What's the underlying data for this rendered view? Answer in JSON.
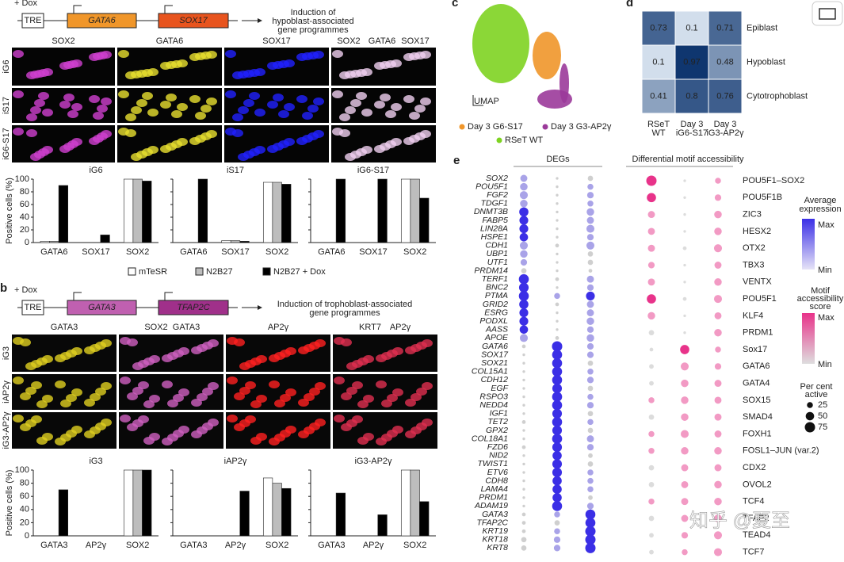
{
  "panel_a": {
    "dox": "+ Dox",
    "construct": [
      "TRE",
      "GATA6",
      "SOX17"
    ],
    "caption": [
      "Induction of",
      "hypoblast-associated",
      "gene programmes"
    ],
    "image_labels": [
      "SOX2",
      "GATA6",
      "SOX17"
    ],
    "merge_label": [
      "SOX2",
      "GATA6",
      "SOX17"
    ],
    "row_labels": [
      "iG6",
      "iS17",
      "iG6-S17"
    ],
    "ylabel": "Positive cells (%)",
    "ylim": [
      0,
      100
    ],
    "yticks": [
      0,
      20,
      40,
      60,
      80,
      100
    ],
    "legend": [
      {
        "name": "mTeSR",
        "color": "#ffffff"
      },
      {
        "name": "N2B27",
        "color": "#bdbdbd"
      },
      {
        "name": "N2B27 + Dox",
        "color": "#000000"
      }
    ],
    "charts": [
      {
        "title": "iG6",
        "categories": [
          "GATA6",
          "SOX17",
          "SOX2"
        ],
        "values": [
          [
            2,
            0,
            100
          ],
          [
            2,
            0,
            100
          ],
          [
            90,
            12,
            97
          ]
        ]
      },
      {
        "title": "iS17",
        "categories": [
          "GATA6",
          "SOX17",
          "SOX2"
        ],
        "values": [
          [
            0,
            3,
            95
          ],
          [
            0,
            3,
            95
          ],
          [
            100,
            2,
            92
          ]
        ]
      },
      {
        "title": "iG6-S17",
        "categories": [
          "GATA6",
          "SOX17",
          "SOX2"
        ],
        "values": [
          [
            0,
            0,
            100
          ],
          [
            0,
            0,
            100
          ],
          [
            100,
            100,
            70
          ]
        ]
      }
    ]
  },
  "panel_b": {
    "letter": "b",
    "dox": "+ Dox",
    "construct": [
      "TRE",
      "GATA3",
      "TFAP2C"
    ],
    "caption": [
      "Induction of trophoblast-associated",
      "gene programmes"
    ],
    "image_labels": [
      [
        "GATA3"
      ],
      [
        "SOX2",
        "GATA3"
      ],
      [
        "AP2γ"
      ],
      [
        "KRT7",
        "AP2γ"
      ]
    ],
    "row_labels": [
      "iG3",
      "iAP2γ",
      "iG3-AP2γ"
    ],
    "ylabel": "Positive cells (%)",
    "ylim": [
      0,
      100
    ],
    "yticks": [
      0,
      20,
      40,
      60,
      80,
      100
    ],
    "charts": [
      {
        "title": "iG3",
        "categories": [
          "GATA3",
          "AP2γ",
          "SOX2"
        ],
        "values": [
          [
            0,
            0,
            100
          ],
          [
            0,
            0,
            100
          ],
          [
            70,
            0,
            100
          ]
        ]
      },
      {
        "title": "iAP2γ",
        "categories": [
          "GATA3",
          "AP2γ",
          "SOX2"
        ],
        "values": [
          [
            0,
            0,
            88
          ],
          [
            0,
            0,
            80
          ],
          [
            0,
            68,
            72
          ]
        ]
      },
      {
        "title": "iG3-AP2γ",
        "categories": [
          "GATA3",
          "AP2γ",
          "SOX2"
        ],
        "values": [
          [
            0,
            0,
            100
          ],
          [
            0,
            0,
            100
          ],
          [
            65,
            32,
            52
          ]
        ]
      }
    ]
  },
  "panel_c": {
    "letter": "c",
    "axis_label": "UMAP",
    "legend": [
      {
        "name": "Day 3 G6-S17",
        "color": "#f0962a"
      },
      {
        "name": "Day 3 G3-AP2γ",
        "color": "#9b3a9a"
      },
      {
        "name": "RSeT WT",
        "color": "#7ed321"
      }
    ]
  },
  "panel_d": {
    "letter": "d",
    "rows": [
      "Epiblast",
      "Hypoblast",
      "Cytotrophoblast"
    ],
    "columns": [
      [
        "RSeT",
        "WT"
      ],
      [
        "Day 3",
        "iG6-S17"
      ],
      [
        "Day 3",
        "iG3-AP2γ"
      ]
    ],
    "values": [
      [
        0.73,
        0.1,
        0.71
      ],
      [
        0.1,
        0.97,
        0.48
      ],
      [
        0.41,
        0.8,
        0.76
      ]
    ]
  },
  "panel_e": {
    "letter": "e",
    "degs_title": "DEGs",
    "motif_title": "Differential motif accessibility",
    "genes": [
      "SOX2",
      "POU5F1",
      "FGF2",
      "TDGF1",
      "DNMT3B",
      "FABP5",
      "LIN28A",
      "HSPE1",
      "CDH1",
      "UBP1",
      "UTF1",
      "PRDM14",
      "TERF1",
      "BNC2",
      "PTMA",
      "GRID2",
      "ESRG",
      "PODXL",
      "AASS",
      "APOE",
      "GATA6",
      "SOX17",
      "SOX21",
      "COL15A1",
      "CDH12",
      "EGF",
      "RSPO3",
      "NEDD4",
      "IGF1",
      "TET2",
      "GPX2",
      "COL18A1",
      "FZD6",
      "NID2",
      "TWIST1",
      "ETV6",
      "CDH8",
      "LAMA4",
      "PRDM1",
      "ADAM19",
      "GATA3",
      "TFAP2C",
      "KRT19",
      "KRT18",
      "KRT8"
    ],
    "gene_values": [
      [
        35,
        5,
        20
      ],
      [
        40,
        5,
        25
      ],
      [
        45,
        5,
        30
      ],
      [
        40,
        5,
        25
      ],
      [
        60,
        5,
        40
      ],
      [
        55,
        5,
        35
      ],
      [
        55,
        5,
        45
      ],
      [
        50,
        5,
        30
      ],
      [
        45,
        10,
        45
      ],
      [
        40,
        5,
        20
      ],
      [
        30,
        5,
        20
      ],
      [
        20,
        5,
        10
      ],
      [
        70,
        10,
        35
      ],
      [
        65,
        5,
        30
      ],
      [
        70,
        25,
        55
      ],
      [
        60,
        10,
        35
      ],
      [
        55,
        5,
        35
      ],
      [
        55,
        5,
        40
      ],
      [
        50,
        5,
        30
      ],
      [
        45,
        10,
        40
      ],
      [
        10,
        75,
        30
      ],
      [
        5,
        70,
        30
      ],
      [
        5,
        70,
        20
      ],
      [
        5,
        70,
        25
      ],
      [
        5,
        70,
        30
      ],
      [
        5,
        65,
        20
      ],
      [
        5,
        70,
        25
      ],
      [
        5,
        70,
        30
      ],
      [
        5,
        65,
        20
      ],
      [
        10,
        70,
        25
      ],
      [
        5,
        65,
        20
      ],
      [
        5,
        70,
        35
      ],
      [
        10,
        65,
        30
      ],
      [
        5,
        60,
        15
      ],
      [
        5,
        65,
        20
      ],
      [
        5,
        65,
        25
      ],
      [
        5,
        60,
        25
      ],
      [
        5,
        60,
        25
      ],
      [
        5,
        60,
        15
      ],
      [
        5,
        70,
        30
      ],
      [
        10,
        25,
        70
      ],
      [
        10,
        20,
        70
      ],
      [
        10,
        25,
        75
      ],
      [
        20,
        30,
        75
      ],
      [
        20,
        30,
        75
      ]
    ],
    "motifs": [
      "POU5F1–SOX2",
      "POU5F1B",
      "ZIC3",
      "HESX2",
      "OTX2",
      "TBX3",
      "VENTX",
      "POU5F1",
      "KLF4",
      "PRDM1",
      "Sox17",
      "GATA6",
      "GATA4",
      "SOX15",
      "SMAD4",
      "FOXH1",
      "FOSL1–JUN (var.2)",
      "CDX2",
      "OVOL2",
      "TCF4",
      "TFAP2",
      "TEAD4",
      "TCF7"
    ],
    "motif_values": [
      [
        75,
        5,
        25
      ],
      [
        60,
        5,
        30
      ],
      [
        35,
        5,
        40
      ],
      [
        35,
        5,
        40
      ],
      [
        35,
        10,
        45
      ],
      [
        30,
        5,
        35
      ],
      [
        35,
        5,
        40
      ],
      [
        60,
        10,
        45
      ],
      [
        40,
        5,
        35
      ],
      [
        20,
        5,
        40
      ],
      [
        10,
        60,
        25
      ],
      [
        15,
        45,
        30
      ],
      [
        15,
        40,
        35
      ],
      [
        25,
        40,
        35
      ],
      [
        20,
        40,
        35
      ],
      [
        25,
        45,
        35
      ],
      [
        25,
        40,
        40
      ],
      [
        20,
        35,
        35
      ],
      [
        20,
        35,
        40
      ],
      [
        25,
        35,
        40
      ],
      [
        20,
        35,
        45
      ],
      [
        15,
        30,
        45
      ],
      [
        15,
        25,
        45
      ]
    ],
    "expression_legend": {
      "title": [
        "Average",
        "expression"
      ],
      "max": "Max",
      "min": "Min"
    },
    "motif_legend": {
      "title": [
        "Motif",
        "accessibility",
        "score"
      ],
      "max": "Max",
      "min": "Min"
    },
    "size_legend": {
      "title": [
        "Per cent",
        "active"
      ],
      "sizes": [
        25,
        50,
        75
      ]
    }
  },
  "watermark": "知乎 @夏至"
}
